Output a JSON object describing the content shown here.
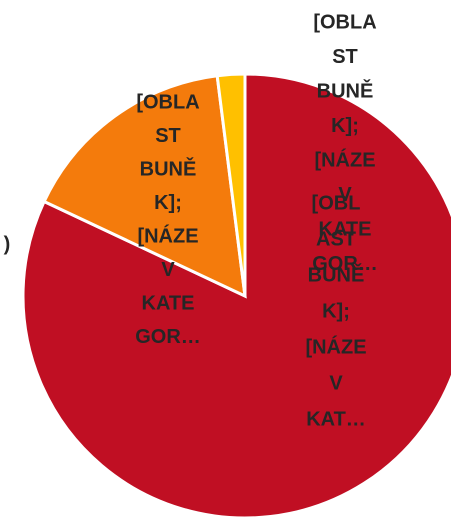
{
  "chart_data": {
    "type": "pie",
    "values": [
      82,
      16,
      2
    ],
    "colors": [
      "#c00f23",
      "#f47b0c",
      "#ffc000"
    ],
    "labels": [
      [
        "[OBL",
        "AST",
        "BUNĚ",
        "K];",
        "[NÁZE",
        "V",
        "KAT…"
      ],
      [
        "[OBLA",
        "ST",
        "BUNĚ",
        "K];",
        "[NÁZE",
        "V",
        "KATE",
        "GOR…"
      ],
      [
        "[OBLA",
        "ST",
        "BUNĚ",
        "K];",
        "[NÁZE",
        "V",
        "KATE",
        "GOR…"
      ]
    ],
    "annotation": ")"
  }
}
